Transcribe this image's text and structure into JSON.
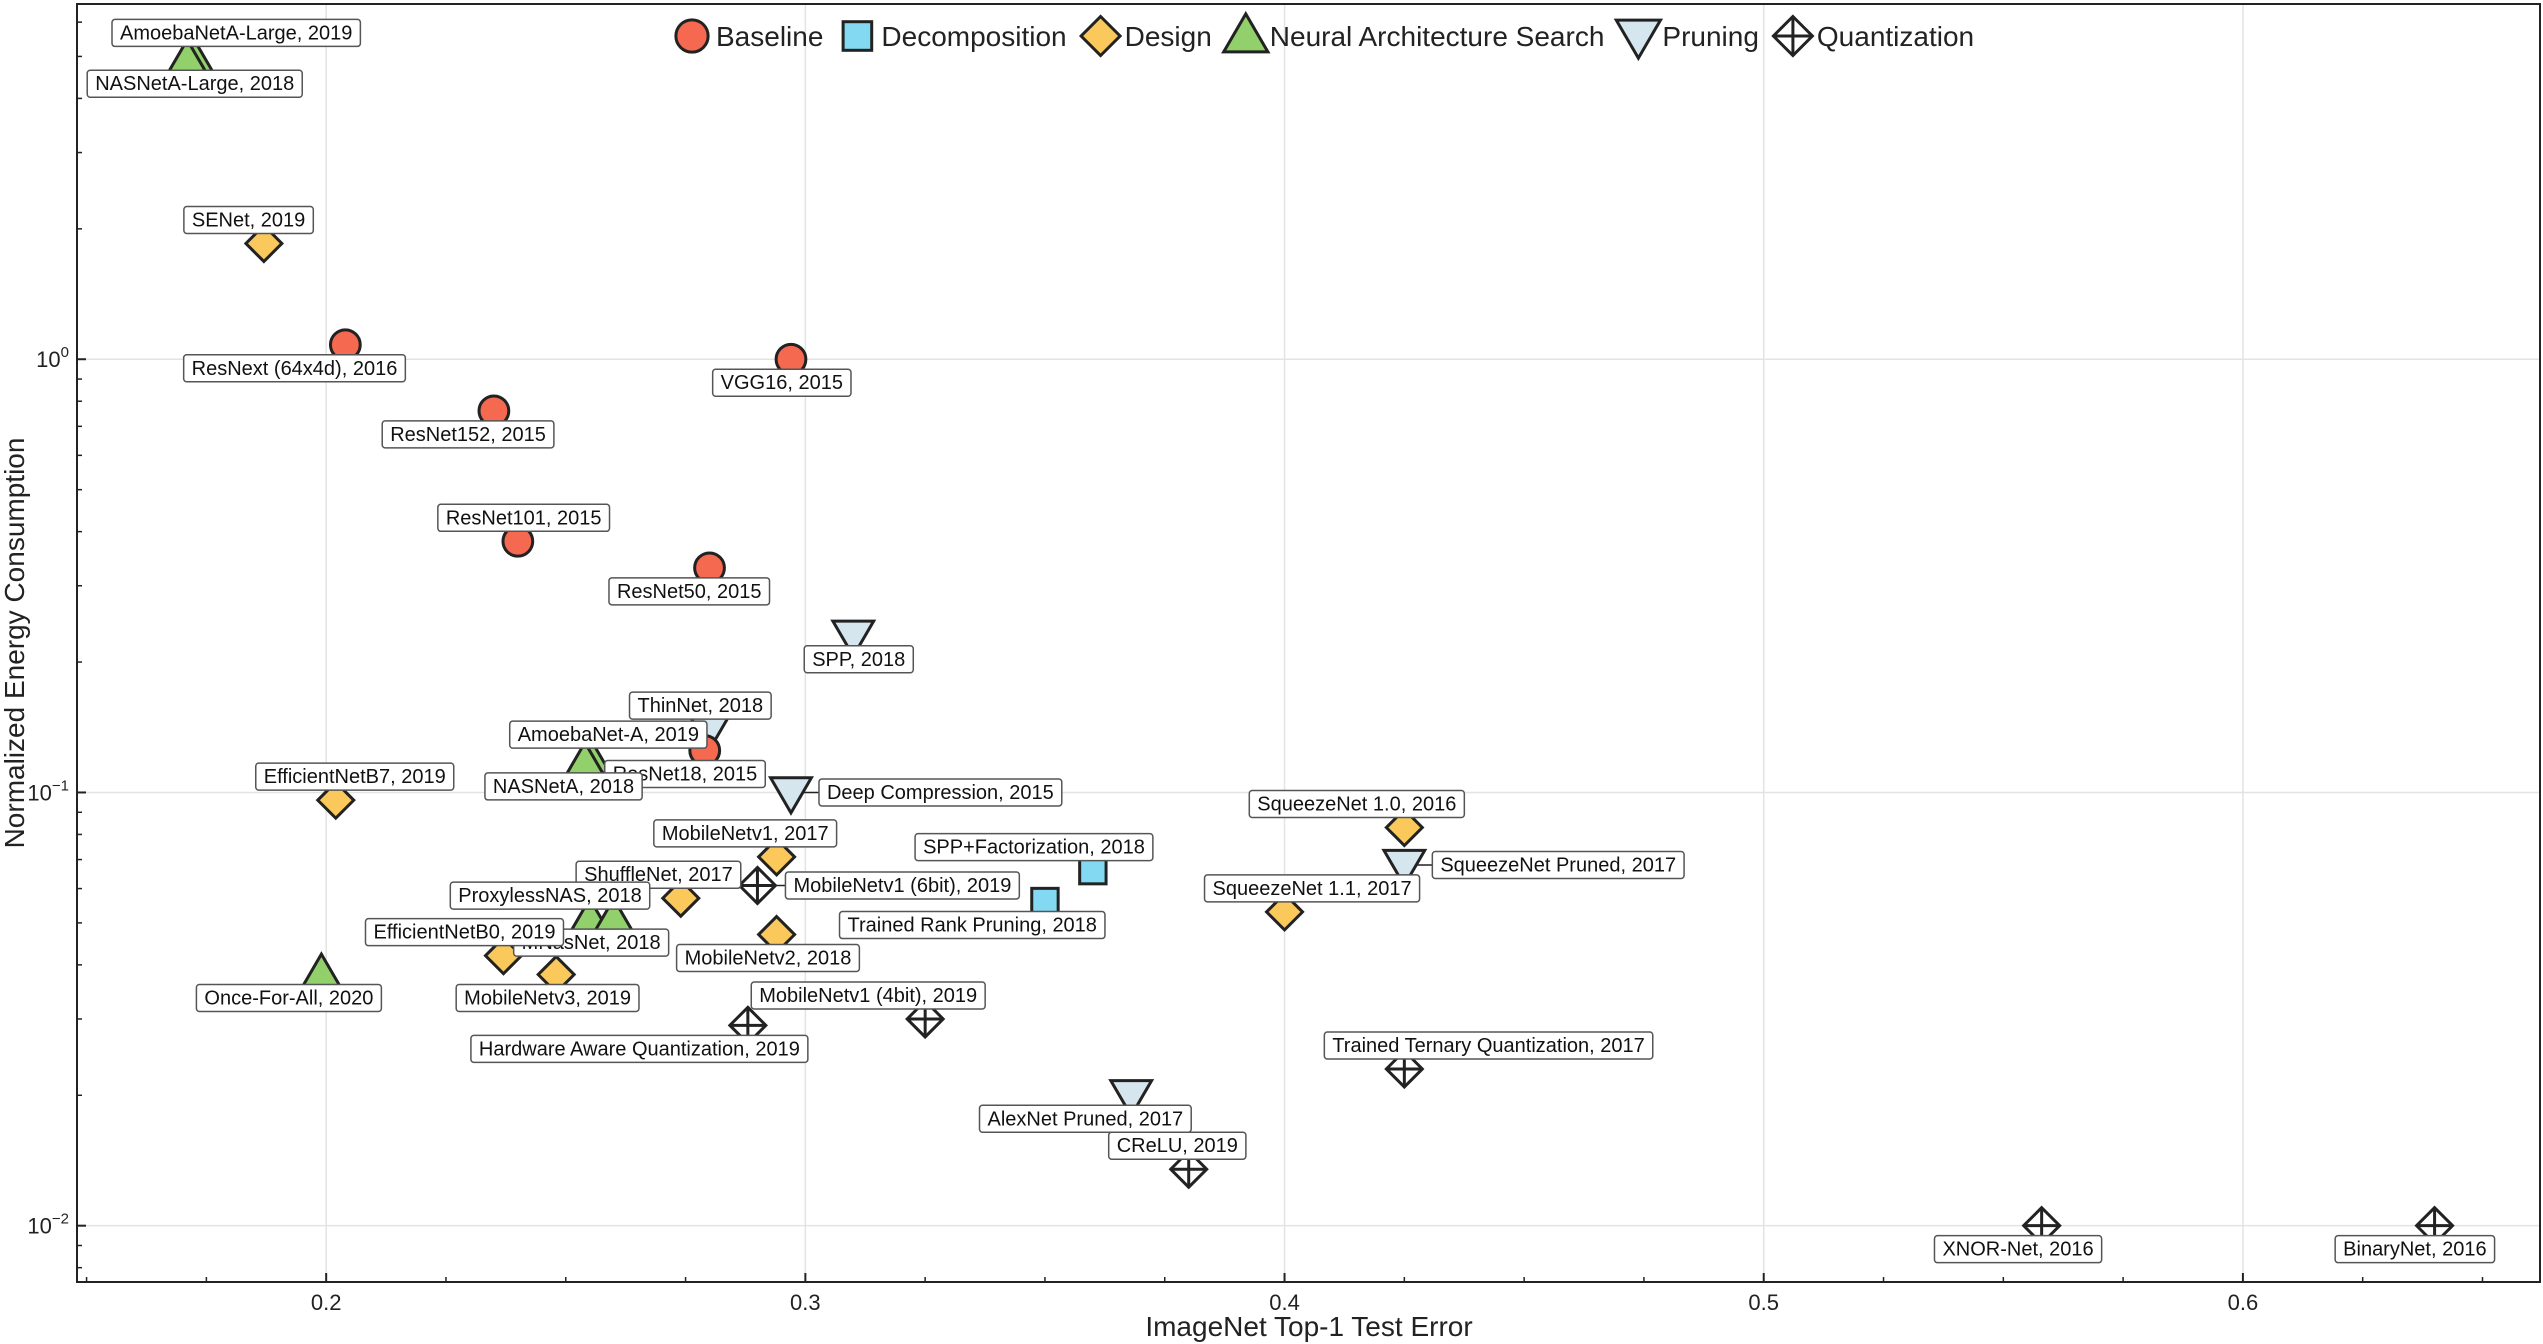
{
  "chart_data": {
    "type": "scatter",
    "xlabel": "ImageNet Top-1 Test Error",
    "ylabel": "Normalized Energy Consumption",
    "xlim": [
      0.148,
      0.662
    ],
    "ylim_log10": [
      -2.13,
      0.82
    ],
    "y_scale": "log",
    "grid": true,
    "legend_position": "top",
    "x_ticks": [
      {
        "value": 0.2,
        "label": "0.2"
      },
      {
        "value": 0.3,
        "label": "0.3"
      },
      {
        "value": 0.4,
        "label": "0.4"
      },
      {
        "value": 0.5,
        "label": "0.5"
      },
      {
        "value": 0.6,
        "label": "0.6"
      }
    ],
    "y_ticks": [
      {
        "exp": 0,
        "base": "10",
        "sup": "0"
      },
      {
        "exp": -1,
        "base": "10",
        "sup": "−1"
      },
      {
        "exp": -2,
        "base": "10",
        "sup": "−2"
      }
    ],
    "categories": [
      {
        "key": "baseline",
        "name": "Baseline",
        "marker": "circle",
        "color": "#f4694f"
      },
      {
        "key": "decomposition",
        "name": "Decomposition",
        "marker": "square",
        "color": "#82d9f1"
      },
      {
        "key": "design",
        "name": "Design",
        "marker": "diamond",
        "color": "#fbc95b"
      },
      {
        "key": "nas",
        "name": "Neural Architecture Search",
        "marker": "triangle-up",
        "color": "#91d06a"
      },
      {
        "key": "pruning",
        "name": "Pruning",
        "marker": "triangle-down",
        "color": "#d6e6ee"
      },
      {
        "key": "quantization",
        "name": "Quantization",
        "marker": "diamond-cross",
        "color": "#ffffff"
      }
    ],
    "points": [
      {
        "label": "AmoebaNetA-Large, 2019",
        "cat": "nas",
        "x": 0.172,
        "y": 5.0,
        "lp": "above-right"
      },
      {
        "label": "NASNetA-Large, 2018",
        "cat": "nas",
        "x": 0.171,
        "y": 4.9,
        "lp": "below-right"
      },
      {
        "label": "SENet, 2019",
        "cat": "design",
        "x": 0.187,
        "y": 1.85,
        "lp": "above-right"
      },
      {
        "label": "ResNext (64x4d), 2016",
        "cat": "baseline",
        "x": 0.204,
        "y": 1.08,
        "lp": "below-left"
      },
      {
        "label": "VGG16, 2015",
        "cat": "baseline",
        "x": 0.297,
        "y": 1.0,
        "lp": "below-left"
      },
      {
        "label": "ResNet152, 2015",
        "cat": "baseline",
        "x": 0.235,
        "y": 0.76,
        "lp": "below-left"
      },
      {
        "label": "ResNet101, 2015",
        "cat": "baseline",
        "x": 0.24,
        "y": 0.38,
        "lp": "above-right"
      },
      {
        "label": "ResNet50, 2015",
        "cat": "baseline",
        "x": 0.28,
        "y": 0.33,
        "lp": "below-left"
      },
      {
        "label": "SPP, 2018",
        "cat": "pruning",
        "x": 0.31,
        "y": 0.23,
        "lp": "below-left"
      },
      {
        "label": "ThinNet, 2018",
        "cat": "pruning",
        "x": 0.28,
        "y": 0.14,
        "lp": "above-right"
      },
      {
        "label": "ResNet18, 2015",
        "cat": "baseline",
        "x": 0.279,
        "y": 0.125,
        "lp": "below-right"
      },
      {
        "label": "AmoebaNet-A, 2019",
        "cat": "nas",
        "x": 0.255,
        "y": 0.12,
        "lp": "above-right"
      },
      {
        "label": "NASNetA, 2018",
        "cat": "nas",
        "x": 0.254,
        "y": 0.117,
        "lp": "below-right"
      },
      {
        "label": "EfficientNetB7, 2019",
        "cat": "design",
        "x": 0.202,
        "y": 0.096,
        "lp": "above-right"
      },
      {
        "label": "Deep Compression, 2015",
        "cat": "pruning",
        "x": 0.297,
        "y": 0.1,
        "lp": "right"
      },
      {
        "label": "MobileNetv1, 2017",
        "cat": "design",
        "x": 0.294,
        "y": 0.071,
        "lp": "above-left"
      },
      {
        "label": "SPP+Factorization, 2018",
        "cat": "decomposition",
        "x": 0.36,
        "y": 0.066,
        "lp": "above-left"
      },
      {
        "label": "Trained Rank Pruning, 2018",
        "cat": "decomposition",
        "x": 0.35,
        "y": 0.056,
        "lp": "below-left"
      },
      {
        "label": "SqueezeNet 1.0, 2016",
        "cat": "design",
        "x": 0.425,
        "y": 0.083,
        "lp": "above-left"
      },
      {
        "label": "SqueezeNet Pruned, 2017",
        "cat": "pruning",
        "x": 0.425,
        "y": 0.068,
        "lp": "right"
      },
      {
        "label": "SqueezeNet 1.1, 2017",
        "cat": "design",
        "x": 0.4,
        "y": 0.053,
        "lp": "above-right"
      },
      {
        "label": "ShuffleNet, 2017",
        "cat": "design",
        "x": 0.274,
        "y": 0.057,
        "lp": "above-left"
      },
      {
        "label": "MobileNetv1 (6bit), 2019",
        "cat": "quantization",
        "x": 0.29,
        "y": 0.061,
        "lp": "right"
      },
      {
        "label": "ProxylessNAS, 2018",
        "cat": "nas",
        "x": 0.255,
        "y": 0.051,
        "lp": "above-left"
      },
      {
        "label": "MNasNet, 2018",
        "cat": "nas",
        "x": 0.26,
        "y": 0.051,
        "lp": "below-right"
      },
      {
        "label": "MobileNetv2, 2018",
        "cat": "design",
        "x": 0.294,
        "y": 0.047,
        "lp": "below-right"
      },
      {
        "label": "EfficientNetB0, 2019",
        "cat": "design",
        "x": 0.237,
        "y": 0.042,
        "lp": "above-left"
      },
      {
        "label": "MobileNetv3, 2019",
        "cat": "design",
        "x": 0.248,
        "y": 0.038,
        "lp": "below-right"
      },
      {
        "label": "Once-For-All, 2020",
        "cat": "nas",
        "x": 0.199,
        "y": 0.038,
        "lp": "below-left"
      },
      {
        "label": "MobileNetv1 (4bit), 2019",
        "cat": "quantization",
        "x": 0.325,
        "y": 0.03,
        "lp": "above-left"
      },
      {
        "label": "Hardware Aware Quantization, 2019",
        "cat": "quantization",
        "x": 0.288,
        "y": 0.029,
        "lp": "below-left"
      },
      {
        "label": "Trained Ternary Quantization, 2017",
        "cat": "quantization",
        "x": 0.425,
        "y": 0.023,
        "lp": "above-right"
      },
      {
        "label": "AlexNet Pruned, 2017",
        "cat": "pruning",
        "x": 0.368,
        "y": 0.02,
        "lp": "below-left"
      },
      {
        "label": "CReLU, 2019",
        "cat": "quantization",
        "x": 0.38,
        "y": 0.0135,
        "lp": "above-right"
      },
      {
        "label": "XNOR-Net, 2016",
        "cat": "quantization",
        "x": 0.558,
        "y": 0.01,
        "lp": "below-left"
      },
      {
        "label": "BinaryNet, 2016",
        "cat": "quantization",
        "x": 0.64,
        "y": 0.01,
        "lp": "below-left"
      }
    ]
  }
}
